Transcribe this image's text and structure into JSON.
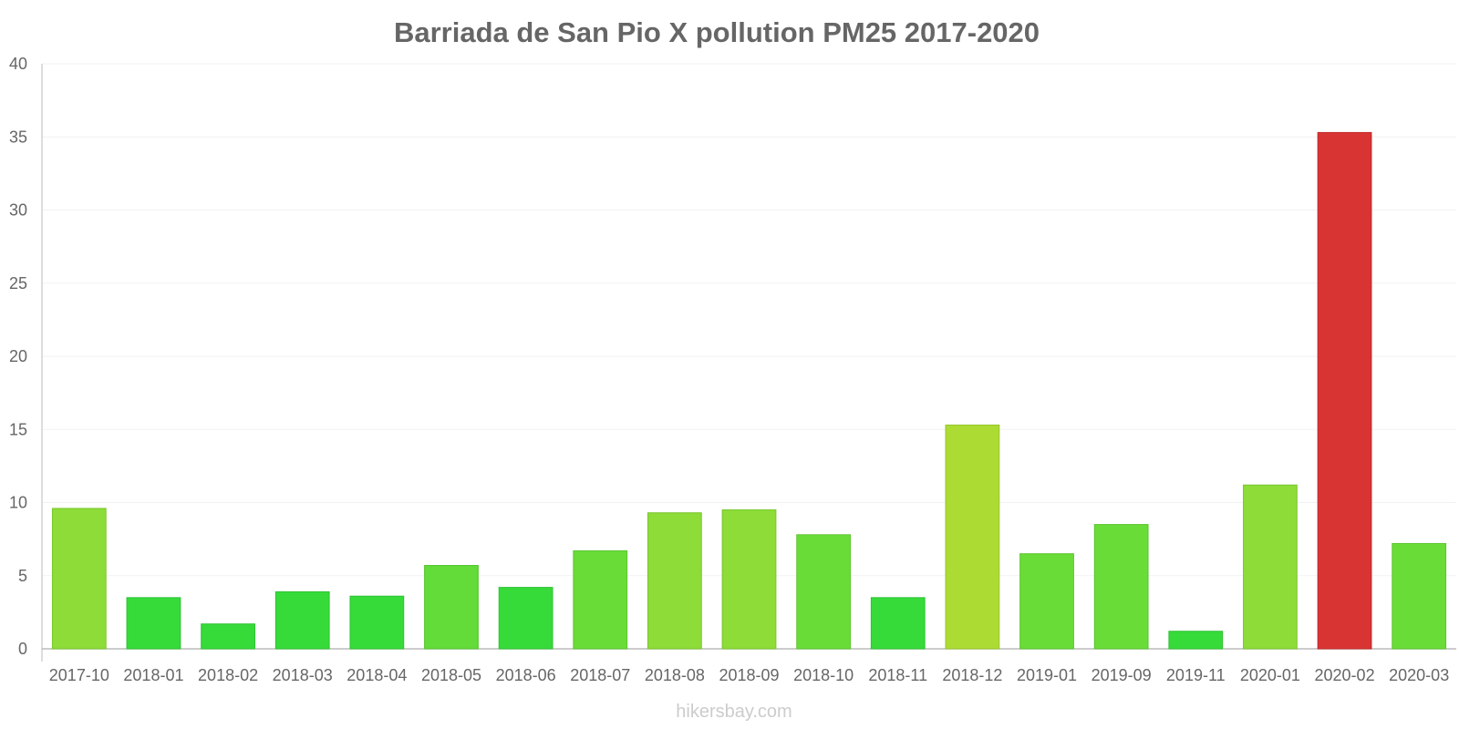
{
  "chart_data": {
    "type": "bar",
    "title": "Barriada de San Pio X pollution PM25 2017-2020",
    "xlabel": "",
    "ylabel": "",
    "ylim": [
      0,
      40
    ],
    "yticks": [
      "0",
      "5",
      "10",
      "15",
      "20",
      "25",
      "30",
      "35",
      "40"
    ],
    "grid": true,
    "legend": "none",
    "categories": [
      "2017-10",
      "2018-01",
      "2018-02",
      "2018-03",
      "2018-04",
      "2018-05",
      "2018-06",
      "2018-07",
      "2018-08",
      "2018-09",
      "2018-10",
      "2018-11",
      "2018-12",
      "2019-01",
      "2019-09",
      "2019-11",
      "2020-01",
      "2020-02",
      "2020-03"
    ],
    "values": [
      9.6,
      3.5,
      1.7,
      3.9,
      3.6,
      5.7,
      4.2,
      6.7,
      9.3,
      9.5,
      7.8,
      3.5,
      15.3,
      6.5,
      8.5,
      1.2,
      11.2,
      35.3,
      7.2
    ],
    "colors": [
      "#8ddc38",
      "#36db3a",
      "#36db3a",
      "#36db3a",
      "#36db3a",
      "#63db38",
      "#36db3a",
      "#6adc37",
      "#8ddc38",
      "#8ddc38",
      "#6adc37",
      "#36db3a",
      "#acdc34",
      "#6adc37",
      "#6adc37",
      "#36db3a",
      "#8ddc38",
      "#d93434",
      "#6adc37"
    ],
    "bar_stroke_colors": [
      "#7ac62e",
      "#2ec232",
      "#2ec232",
      "#2ec232",
      "#2ec232",
      "#55c330",
      "#2ec232",
      "#5cc52f",
      "#7ac62e",
      "#7ac62e",
      "#5cc52f",
      "#2ec232",
      "#98c52c",
      "#5cc52f",
      "#5cc52f",
      "#2ec232",
      "#7ac62e",
      "#c02828",
      "#5cc52f"
    ]
  },
  "watermark": "hikersbay.com"
}
